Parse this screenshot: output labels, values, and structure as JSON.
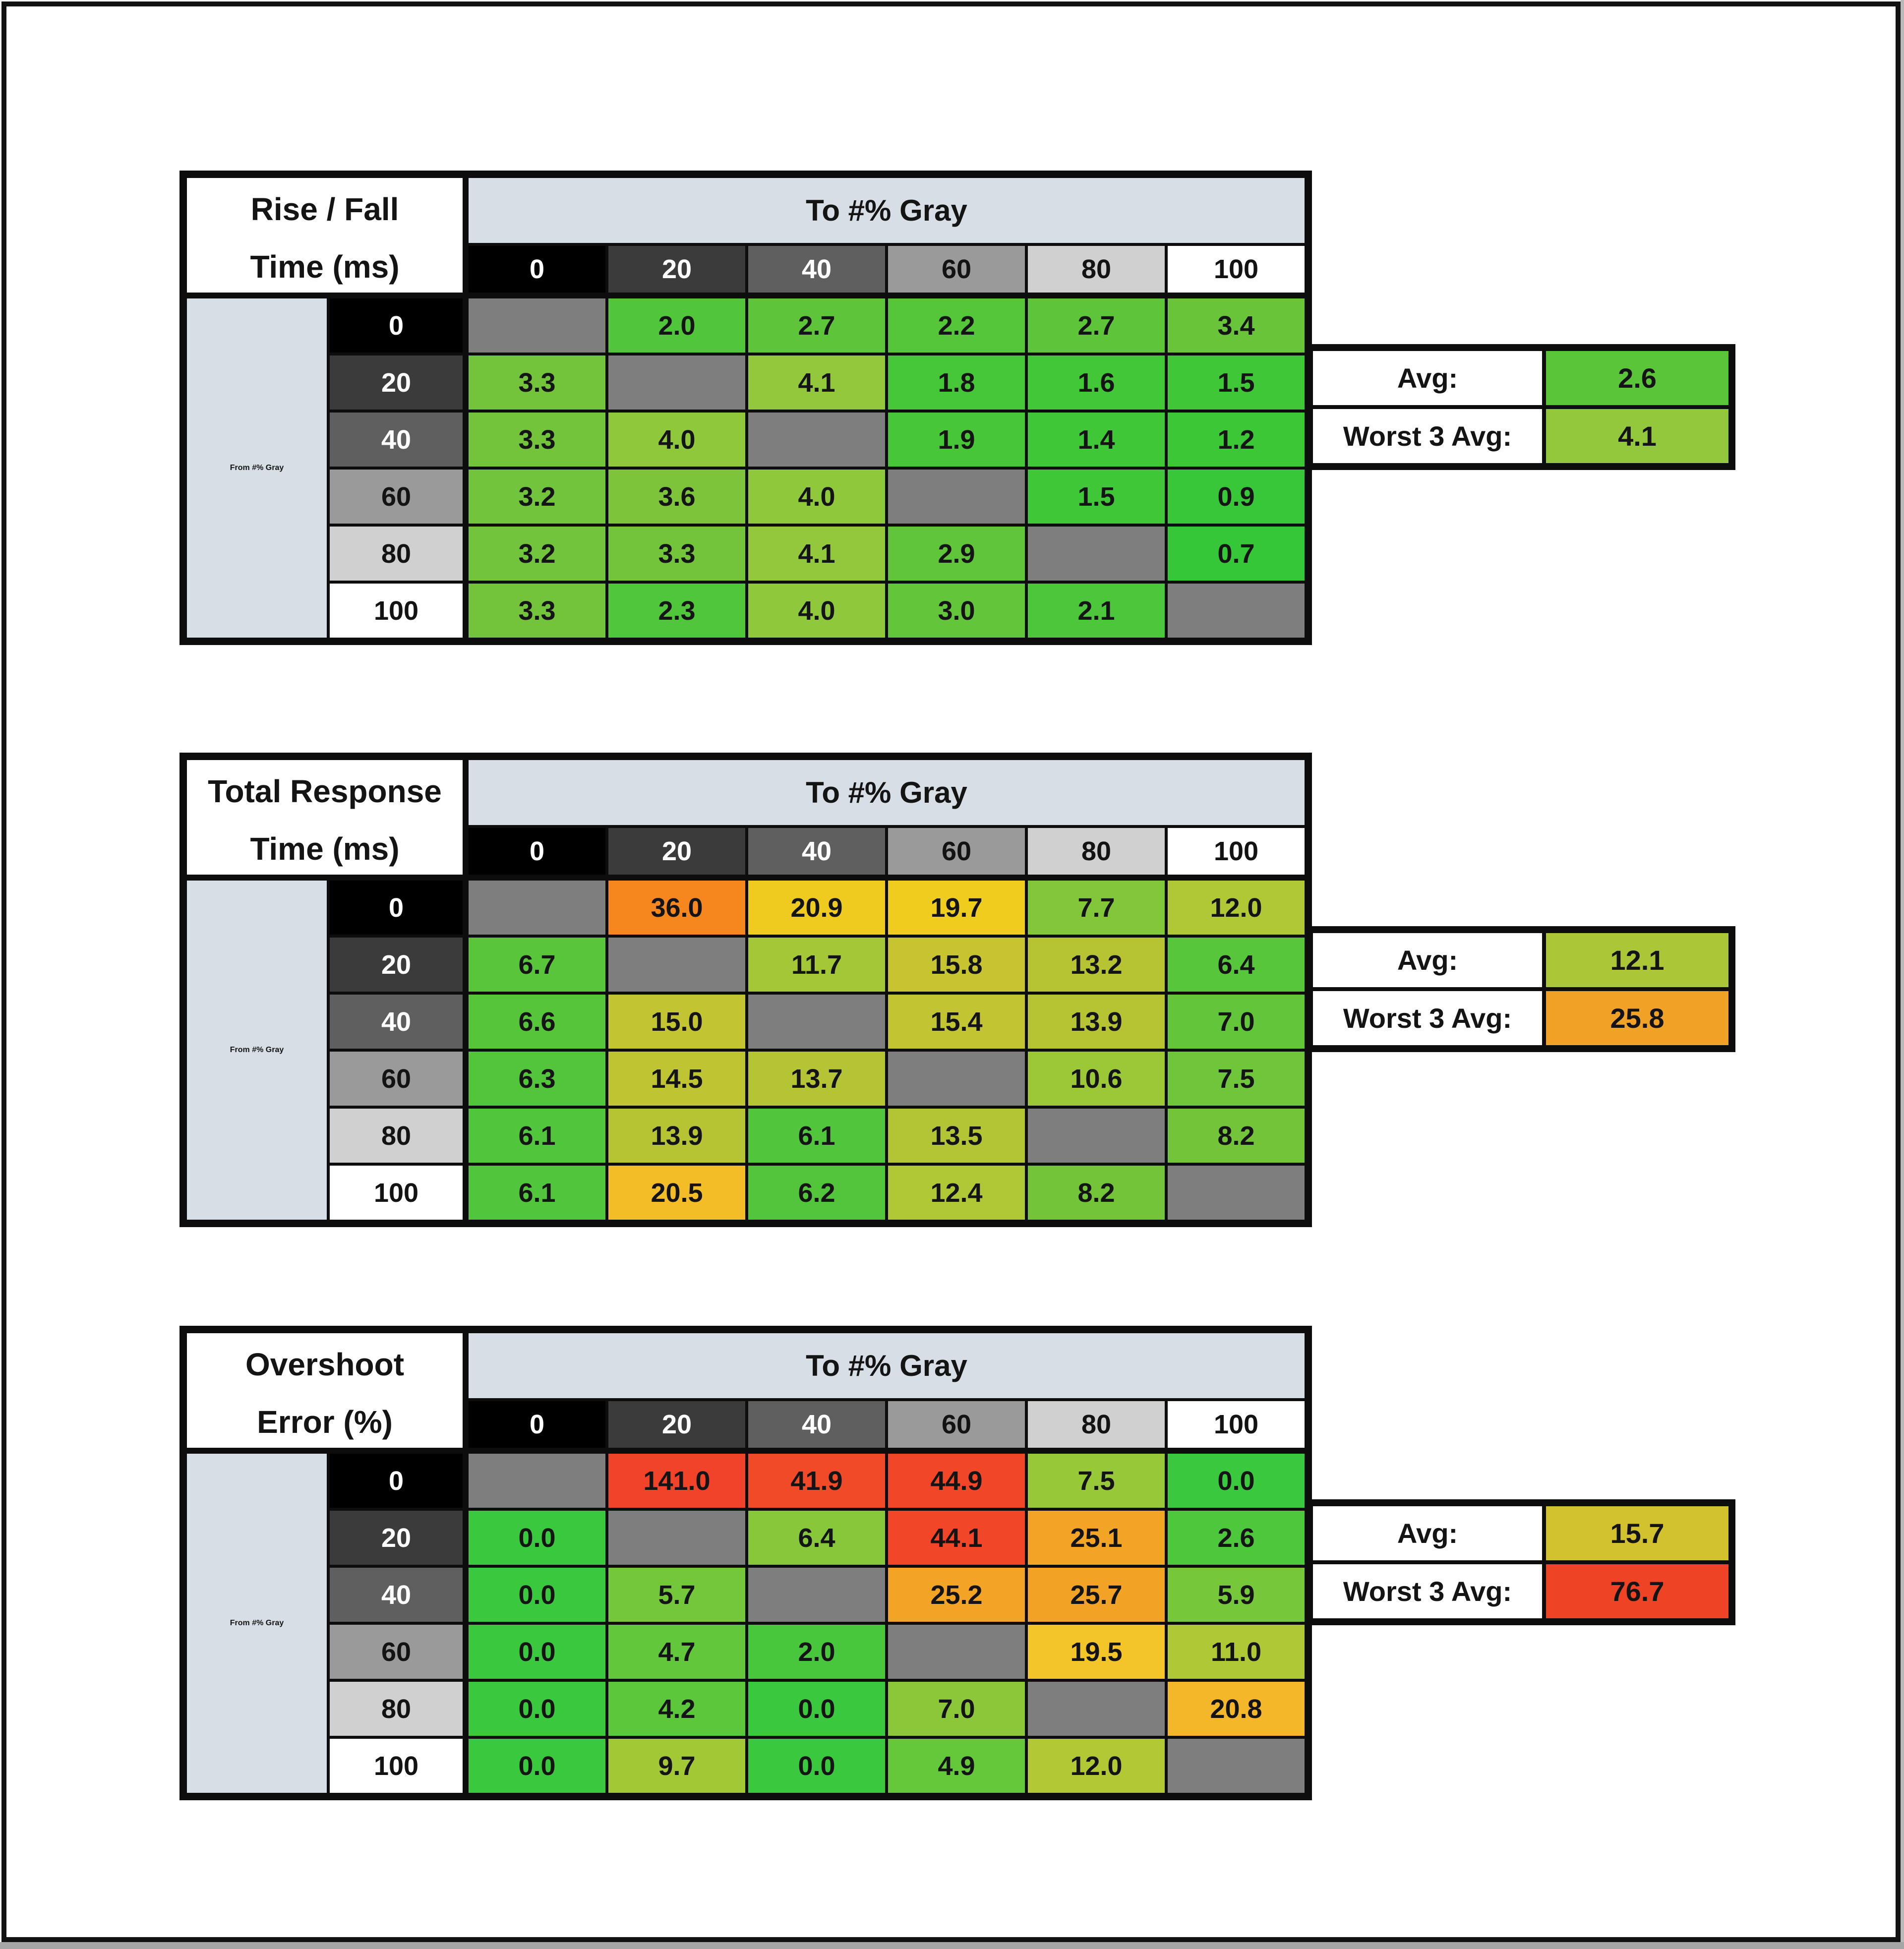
{
  "page": {
    "background": "#FFFFFF",
    "frame_color": "#121212",
    "scrollbar_color": "#A6A6A6"
  },
  "header": {
    "to_gray": "To #% Gray",
    "from_gray": "From #% Gray",
    "col_values": [
      "0",
      "20",
      "40",
      "60",
      "80",
      "100"
    ],
    "row_values": [
      "0",
      "20",
      "40",
      "60",
      "80",
      "100"
    ],
    "col_bg": [
      "#000000",
      "#3B3B3B",
      "#5F5F5F",
      "#9A9A9A",
      "#D0D0D0",
      "#FFFFFF"
    ],
    "col_fg": [
      "#FFFFFF",
      "#FFFFFF",
      "#FFFFFF",
      "#131313",
      "#131313",
      "#131313"
    ],
    "header_bg": "#D7DEE6",
    "diag_color": "#7E7E7E"
  },
  "tables": [
    {
      "name": "rise-fall",
      "title_line1": "Rise / Fall",
      "title_line2": "Time (ms)",
      "rows": [
        [
          "",
          "2.0",
          "2.7",
          "2.2",
          "2.7",
          "3.4"
        ],
        [
          "3.3",
          "",
          "4.1",
          "1.8",
          "1.6",
          "1.5"
        ],
        [
          "3.3",
          "4.0",
          "",
          "1.9",
          "1.4",
          "1.2"
        ],
        [
          "3.2",
          "3.6",
          "4.0",
          "",
          "1.5",
          "0.9"
        ],
        [
          "3.2",
          "3.3",
          "4.1",
          "2.9",
          "",
          "0.7"
        ],
        [
          "3.3",
          "2.3",
          "4.0",
          "3.0",
          "2.1",
          ""
        ]
      ],
      "colors": [
        [
          null,
          "#52C63A",
          "#5EC53A",
          "#55C63A",
          "#5EC53A",
          "#6AC43A"
        ],
        [
          "#74C43B",
          null,
          "#93C83C",
          "#45C737",
          "#42C737",
          "#40C737"
        ],
        [
          "#74C43B",
          "#90C83C",
          null,
          "#47C737",
          "#3FC737",
          "#3CC737"
        ],
        [
          "#71C43B",
          "#7EC43B",
          "#90C83C",
          null,
          "#40C737",
          "#38C738"
        ],
        [
          "#71C43B",
          "#74C43B",
          "#93C83C",
          "#60C53A",
          null,
          "#36C738"
        ],
        [
          "#74C43B",
          "#50C63A",
          "#90C83C",
          "#63C53A",
          "#4CC63A",
          null
        ]
      ],
      "avg_label": "Avg:",
      "avg_value": "2.6",
      "avg_color": "#5BC53A",
      "worst_label": "Worst 3 Avg:",
      "worst_value": "4.1",
      "worst_color": "#93C83C"
    },
    {
      "name": "total-response",
      "title_line1": "Total Response",
      "title_line2": "Time (ms)",
      "rows": [
        [
          "",
          "36.0",
          "20.9",
          "19.7",
          "7.7",
          "12.0"
        ],
        [
          "6.7",
          "",
          "11.7",
          "15.8",
          "13.2",
          "6.4"
        ],
        [
          "6.6",
          "15.0",
          "",
          "15.4",
          "13.9",
          "7.0"
        ],
        [
          "6.3",
          "14.5",
          "13.7",
          "",
          "10.6",
          "7.5"
        ],
        [
          "6.1",
          "13.9",
          "6.1",
          "13.5",
          "",
          "8.2"
        ],
        [
          "6.1",
          "20.5",
          "6.2",
          "12.4",
          "8.2",
          ""
        ]
      ],
      "colors": [
        [
          null,
          "#F6871F",
          "#F0CB1F",
          "#EFCD1E",
          "#82C739",
          "#B0C736"
        ],
        [
          "#58C53A",
          null,
          "#A4C737",
          "#C6C431",
          "#B6C434",
          "#57C63B"
        ],
        [
          "#57C53A",
          "#C2C432",
          null,
          "#C2C432",
          "#B6C434",
          "#63C63A"
        ],
        [
          "#53C53A",
          "#BFC433",
          "#B5C434",
          null,
          "#9CC737",
          "#6FC63A"
        ],
        [
          "#51C53B",
          "#B6C434",
          "#51C53B",
          "#B3C434",
          null,
          "#74C43A"
        ],
        [
          "#51C53B",
          "#F2BD26",
          "#52C53B",
          "#B0C736",
          "#74C43A",
          null
        ]
      ],
      "avg_label": "Avg:",
      "avg_value": "12.1",
      "avg_color": "#ABC737",
      "worst_label": "Worst 3 Avg:",
      "worst_value": "25.8",
      "worst_color": "#F0A226"
    },
    {
      "name": "overshoot",
      "title_line1": "Overshoot",
      "title_line2": "Error (%)",
      "rows": [
        [
          "",
          "141.0",
          "41.9",
          "44.9",
          "7.5",
          "0.0"
        ],
        [
          "0.0",
          "",
          "6.4",
          "44.1",
          "25.1",
          "2.6"
        ],
        [
          "0.0",
          "5.7",
          "",
          "25.2",
          "25.7",
          "5.9"
        ],
        [
          "0.0",
          "4.7",
          "2.0",
          "",
          "19.5",
          "11.0"
        ],
        [
          "0.0",
          "4.2",
          "0.0",
          "7.0",
          "",
          "20.8"
        ],
        [
          "0.0",
          "9.7",
          "0.0",
          "4.9",
          "12.0",
          ""
        ]
      ],
      "colors": [
        [
          null,
          "#F1432A",
          "#F14A28",
          "#F14728",
          "#97C838",
          "#3AC83E"
        ],
        [
          "#3AC83E",
          null,
          "#88C739",
          "#F14728",
          "#F2A425",
          "#4DC73B"
        ],
        [
          "#3AC83E",
          "#74C73A",
          null,
          "#F2A425",
          "#F2A325",
          "#77C73A"
        ],
        [
          "#3AC83E",
          "#62C73A",
          "#48C73C",
          null,
          "#F3C528",
          "#AFC835"
        ],
        [
          "#3AC83E",
          "#5DC73B",
          "#3AC83E",
          "#8CC739",
          null,
          "#F3B729"
        ],
        [
          "#3AC83E",
          "#A2C836",
          "#3AC83E",
          "#65C73A",
          "#B2C835",
          null
        ]
      ],
      "avg_label": "Avg:",
      "avg_value": "15.7",
      "avg_color": "#D2C32E",
      "worst_label": "Worst 3 Avg:",
      "worst_value": "76.7",
      "worst_color": "#EF4326"
    }
  ],
  "chart_data": [
    {
      "type": "heatmap",
      "title": "Rise / Fall Time (ms)",
      "xlabel": "To #% Gray",
      "ylabel": "From #% Gray",
      "x": [
        0,
        20,
        40,
        60,
        80,
        100
      ],
      "y": [
        0,
        20,
        40,
        60,
        80,
        100
      ],
      "values": [
        [
          null,
          2.0,
          2.7,
          2.2,
          2.7,
          3.4
        ],
        [
          3.3,
          null,
          4.1,
          1.8,
          1.6,
          1.5
        ],
        [
          3.3,
          4.0,
          null,
          1.9,
          1.4,
          1.2
        ],
        [
          3.2,
          3.6,
          4.0,
          null,
          1.5,
          0.9
        ],
        [
          3.2,
          3.3,
          4.1,
          2.9,
          null,
          0.7
        ],
        [
          3.3,
          2.3,
          4.0,
          3.0,
          2.1,
          null
        ]
      ],
      "avg": 2.6,
      "worst_3_avg": 4.1,
      "legend_position": "right"
    },
    {
      "type": "heatmap",
      "title": "Total Response Time (ms)",
      "xlabel": "To #% Gray",
      "ylabel": "From #% Gray",
      "x": [
        0,
        20,
        40,
        60,
        80,
        100
      ],
      "y": [
        0,
        20,
        40,
        60,
        80,
        100
      ],
      "values": [
        [
          null,
          36.0,
          20.9,
          19.7,
          7.7,
          12.0
        ],
        [
          6.7,
          null,
          11.7,
          15.8,
          13.2,
          6.4
        ],
        [
          6.6,
          15.0,
          null,
          15.4,
          13.9,
          7.0
        ],
        [
          6.3,
          14.5,
          13.7,
          null,
          10.6,
          7.5
        ],
        [
          6.1,
          13.9,
          6.1,
          13.5,
          null,
          8.2
        ],
        [
          6.1,
          20.5,
          6.2,
          12.4,
          8.2,
          null
        ]
      ],
      "avg": 12.1,
      "worst_3_avg": 25.8,
      "legend_position": "right"
    },
    {
      "type": "heatmap",
      "title": "Overshoot Error (%)",
      "xlabel": "To #% Gray",
      "ylabel": "From #% Gray",
      "x": [
        0,
        20,
        40,
        60,
        80,
        100
      ],
      "y": [
        0,
        20,
        40,
        60,
        80,
        100
      ],
      "values": [
        [
          null,
          141.0,
          41.9,
          44.9,
          7.5,
          0.0
        ],
        [
          0.0,
          null,
          6.4,
          44.1,
          25.1,
          2.6
        ],
        [
          0.0,
          5.7,
          null,
          25.2,
          25.7,
          5.9
        ],
        [
          0.0,
          4.7,
          2.0,
          null,
          19.5,
          11.0
        ],
        [
          0.0,
          4.2,
          0.0,
          7.0,
          null,
          20.8
        ],
        [
          0.0,
          9.7,
          0.0,
          4.9,
          12.0,
          null
        ]
      ],
      "avg": 15.7,
      "worst_3_avg": 76.7,
      "legend_position": "right"
    }
  ]
}
